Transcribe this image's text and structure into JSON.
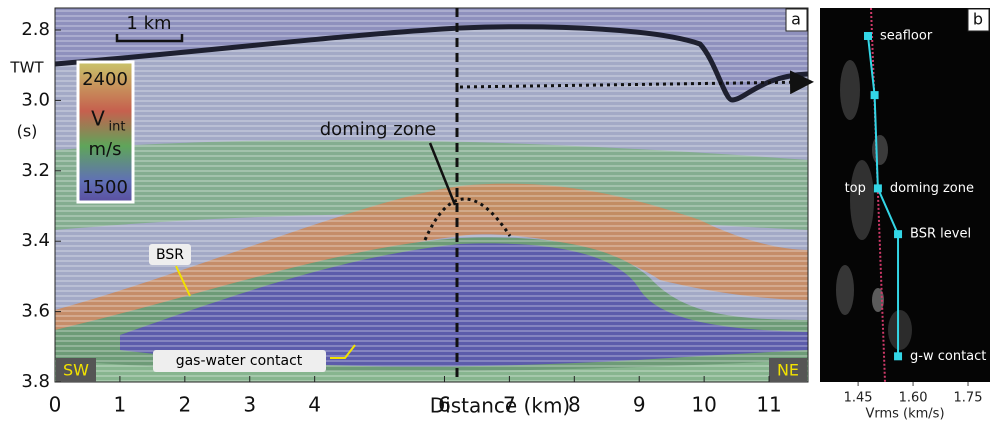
{
  "chart_data": [
    {
      "type": "image",
      "panel_label": "a",
      "xlabel": "Distance (km)",
      "ylabel": [
        "TWT",
        "(s)"
      ],
      "xlim": [
        0,
        11.6
      ],
      "ylim": [
        2.7375,
        3.8
      ],
      "y_reversed": true,
      "xticks": [
        0,
        1,
        2,
        3,
        4,
        6,
        7,
        8,
        9,
        10,
        11
      ],
      "yticks": [
        2.8,
        {
          "value": 3,
          "label": "3.0"
        },
        3.2,
        3.4,
        3.6,
        3.8
      ],
      "scale_bar": "1 km",
      "colorbar": {
        "ticks": [
          2400,
          1500
        ],
        "label": "V",
        "label_sub": "int",
        "unit": "m/s"
      },
      "annotations": [
        "doming zone",
        "BSR",
        "gas-water contact"
      ],
      "corner_labels": [
        "SW",
        "NE"
      ]
    },
    {
      "type": "line",
      "panel_label": "b",
      "xlabel": "Vrms (km/s)",
      "xlim": [
        1.346,
        1.81
      ],
      "ylim": [
        2.7375,
        3.8
      ],
      "y_reversed": true,
      "xticks": [
        1.45,
        {
          "value": 1.6,
          "label": "1.60"
        },
        1.75
      ],
      "series": [
        {
          "color": "#33d6e6",
          "x": [
            1.477,
            1.495,
            1.504,
            1.559,
            1.559
          ],
          "values": [
            2.817,
            2.985,
            3.25,
            3.38,
            3.727
          ]
        }
      ],
      "point_labels": [
        "seafloor",
        null,
        "doming zone",
        "BSR level",
        "g-w contact"
      ],
      "point_labels_left": [
        null,
        null,
        "top",
        null,
        null
      ]
    }
  ]
}
